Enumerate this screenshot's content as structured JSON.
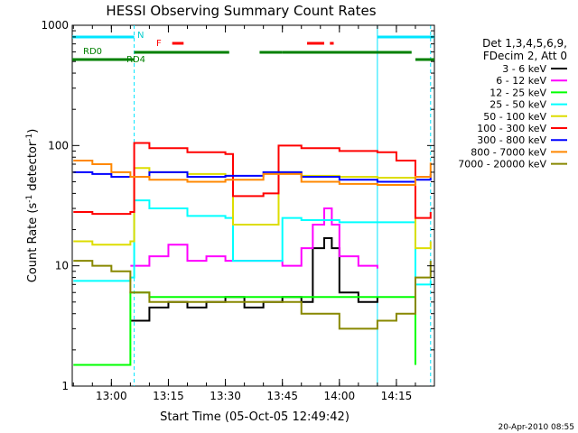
{
  "chart_data": {
    "type": "line",
    "title": "HESSI Observing Summary Count Rates",
    "xlabel": "Start Time (05-Oct-05 12:49:42)",
    "ylabel_main": "Count Rate (s",
    "ylabel_sup1": "-1",
    "ylabel_mid": " detector",
    "ylabel_sup2": "-1",
    "ylabel_end": ")",
    "y_scale": "log",
    "ylim": [
      1,
      1000
    ],
    "xlim": [
      "12:49:42",
      "14:25:00"
    ],
    "y_tick_labels": [
      "1",
      "10",
      "100",
      "1000"
    ],
    "x_tick_labels": [
      "13:00",
      "13:15",
      "13:30",
      "13:45",
      "14:00",
      "14:15"
    ],
    "timestamp": "20-Apr-2010 08:55",
    "legend_header": [
      "Det 1,3,4,5,6,9,",
      "FDecim 2, Att 0"
    ],
    "legend_position": "right",
    "flag_labels": {
      "night": "N",
      "flare": "F",
      "rd0": "RD0",
      "rd4": "RD4"
    },
    "flags": {
      "night_intervals": [
        [
          "12:49:42",
          "13:06:00"
        ],
        [
          "14:10:00",
          "14:25:00"
        ]
      ],
      "night_boundaries": [
        "13:06:00",
        "14:10:00",
        "14:24:00"
      ],
      "flare_intervals": [
        [
          "13:16:00",
          "13:19:00"
        ],
        [
          "13:51:30",
          "13:56:00"
        ],
        [
          "13:57:30",
          "13:58:30"
        ]
      ],
      "rd0_intervals": [
        [
          "12:49:42",
          "13:06:00"
        ],
        [
          "14:20:00",
          "14:25:00"
        ]
      ],
      "rd4_intervals": [
        [
          "13:06:00",
          "13:31:00"
        ],
        [
          "13:39:00",
          "13:45:00"
        ],
        [
          "13:45:00",
          "14:19:00"
        ]
      ]
    },
    "series": [
      {
        "name": "3 - 6 keV",
        "color": "#000000",
        "x": [
          "13:05",
          "13:10",
          "13:15",
          "13:20",
          "13:25",
          "13:30",
          "13:35",
          "13:40",
          "13:45",
          "13:50",
          "13:53",
          "13:56",
          "13:58",
          "14:00",
          "14:05",
          "14:10"
        ],
        "y": [
          3.5,
          4.5,
          5,
          4.5,
          5,
          5.5,
          4.5,
          5,
          5.5,
          5,
          14,
          17,
          14,
          6,
          5,
          5.5
        ]
      },
      {
        "name": "6 - 12 keV",
        "color": "#ff00ff",
        "x": [
          "13:05",
          "13:10",
          "13:15",
          "13:20",
          "13:25",
          "13:30",
          "13:35",
          "13:40",
          "13:45",
          "13:50",
          "13:53",
          "13:56",
          "13:58",
          "14:00",
          "14:05",
          "14:10"
        ],
        "y": [
          10,
          12,
          15,
          11,
          12,
          11,
          11,
          11,
          10,
          14,
          22,
          30,
          22,
          12,
          10,
          9.5
        ]
      },
      {
        "name": "12 - 25 keV",
        "color": "#00ff00",
        "x": [
          "12:50",
          "12:55",
          "13:00",
          "13:05",
          "13:10",
          "13:20",
          "13:30",
          "13:40",
          "13:50",
          "14:00",
          "14:10",
          "14:20"
        ],
        "y": [
          1.5,
          1.5,
          1.5,
          6,
          5.5,
          5.5,
          5.5,
          5.5,
          5.5,
          5.5,
          5.5,
          1.5
        ]
      },
      {
        "name": "25 - 50 keV",
        "color": "#00ffff",
        "x": [
          "12:50",
          "12:55",
          "13:00",
          "13:05",
          "13:06",
          "13:10",
          "13:20",
          "13:30",
          "13:32",
          "13:40",
          "13:45",
          "13:50",
          "14:00",
          "14:10",
          "14:20",
          "14:24"
        ],
        "y": [
          7.5,
          7.5,
          7.5,
          8,
          35,
          30,
          26,
          25,
          11,
          11,
          25,
          24,
          23,
          23,
          7,
          7.5
        ]
      },
      {
        "name": "50 - 100 keV",
        "color": "#dddd00",
        "x": [
          "12:50",
          "12:55",
          "13:00",
          "13:05",
          "13:06",
          "13:10",
          "13:20",
          "13:30",
          "13:32",
          "13:40",
          "13:44",
          "13:50",
          "14:00",
          "14:10",
          "14:20",
          "14:24"
        ],
        "y": [
          16,
          15,
          15,
          16,
          65,
          60,
          58,
          56,
          22,
          22,
          60,
          56,
          55,
          54,
          14,
          16
        ]
      },
      {
        "name": "100 - 300 keV",
        "color": "#ff0000",
        "x": [
          "12:50",
          "12:55",
          "13:00",
          "13:05",
          "13:06",
          "13:10",
          "13:20",
          "13:30",
          "13:32",
          "13:40",
          "13:44",
          "13:50",
          "14:00",
          "14:10",
          "14:15",
          "14:20",
          "14:24"
        ],
        "y": [
          28,
          27,
          27,
          28,
          105,
          95,
          88,
          85,
          38,
          40,
          100,
          95,
          90,
          88,
          75,
          25,
          28
        ]
      },
      {
        "name": "300 - 800 keV",
        "color": "#0000ff",
        "x": [
          "12:50",
          "12:55",
          "13:00",
          "13:05",
          "13:10",
          "13:20",
          "13:30",
          "13:40",
          "13:50",
          "14:00",
          "14:10",
          "14:20",
          "14:24"
        ],
        "y": [
          60,
          58,
          55,
          55,
          60,
          55,
          56,
          60,
          55,
          52,
          50,
          52,
          58
        ]
      },
      {
        "name": "800 - 7000 keV",
        "color": "#ff8800",
        "x": [
          "12:50",
          "12:55",
          "13:00",
          "13:05",
          "13:10",
          "13:20",
          "13:30",
          "13:40",
          "13:50",
          "14:00",
          "14:10",
          "14:20",
          "14:24"
        ],
        "y": [
          75,
          70,
          60,
          55,
          52,
          50,
          52,
          58,
          50,
          48,
          47,
          55,
          72
        ]
      },
      {
        "name": "7000 - 20000 keV",
        "color": "#888800",
        "x": [
          "12:50",
          "12:55",
          "13:00",
          "13:05",
          "13:10",
          "13:20",
          "13:30",
          "13:40",
          "13:50",
          "14:00",
          "14:10",
          "14:15",
          "14:20",
          "14:24"
        ],
        "y": [
          11,
          10,
          9,
          6,
          5,
          5,
          5,
          5,
          4,
          3,
          3.5,
          4,
          8,
          11
        ]
      }
    ]
  }
}
